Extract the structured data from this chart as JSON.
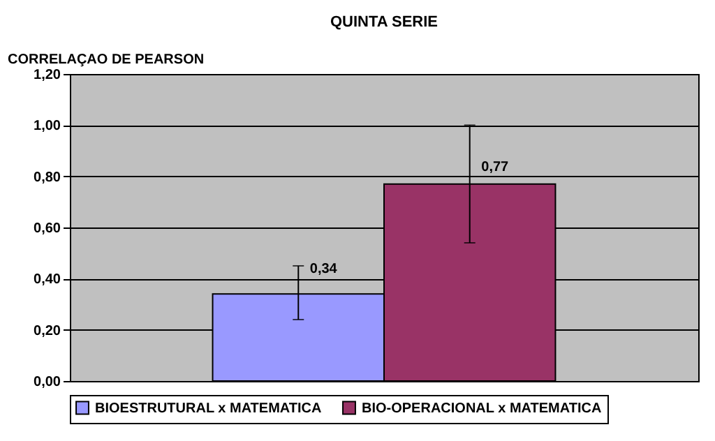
{
  "chart_data": {
    "type": "bar",
    "title": "QUINTA SERIE",
    "ylabel": "CORRELAÇAO DE PEARSON",
    "categories": [
      null
    ],
    "series": [
      {
        "name": "BIOESTRUTURAL x MATEMATICA",
        "color": "#9999ff",
        "values": [
          0.34
        ],
        "errors": [
          [
            0.24,
            0.45
          ]
        ],
        "value_labels": [
          "0,34"
        ]
      },
      {
        "name": "BIO-OPERACIONAL x MATEMATICA",
        "color": "#993366",
        "values": [
          0.77
        ],
        "errors": [
          [
            0.54,
            1.0
          ]
        ],
        "value_labels": [
          "0,77"
        ]
      }
    ],
    "ylim": [
      0,
      1.2
    ],
    "yticks": [
      {
        "value": 0,
        "label": "0,00"
      },
      {
        "value": 0.2,
        "label": "0,20"
      },
      {
        "value": 0.4,
        "label": "0,40"
      },
      {
        "value": 0.6,
        "label": "0,60"
      },
      {
        "value": 0.8,
        "label": "0,80"
      },
      {
        "value": 1.0,
        "label": "1,00"
      },
      {
        "value": 1.2,
        "label": "1,20"
      }
    ],
    "grid": "y",
    "legend": "bottom"
  }
}
